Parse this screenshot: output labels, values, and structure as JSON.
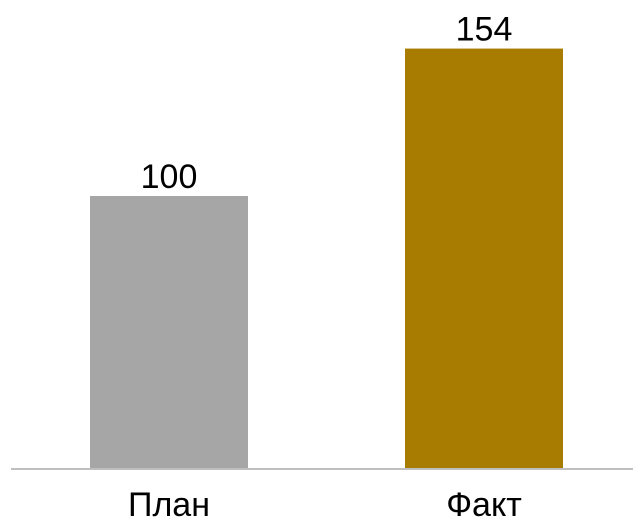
{
  "chart_data": {
    "type": "bar",
    "title": "",
    "xlabel": "",
    "ylabel": "",
    "categories": [
      "План",
      "Факт"
    ],
    "values": [
      100,
      154
    ],
    "data_labels": [
      "100",
      "154"
    ],
    "colors": [
      "#a6a6a6",
      "#a87c00"
    ],
    "ylim": [
      0,
      160
    ],
    "grid": false,
    "legend": "none"
  }
}
